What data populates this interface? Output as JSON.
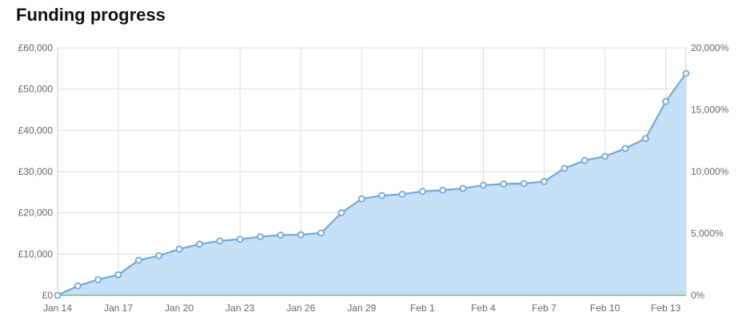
{
  "header": {
    "title": "Funding progress"
  },
  "chart_data": {
    "type": "area",
    "title": "Funding progress",
    "xlabel": "",
    "ylabel": "",
    "x": [
      "Jan 14",
      "Jan 15",
      "Jan 16",
      "Jan 17",
      "Jan 18",
      "Jan 19",
      "Jan 20",
      "Jan 21",
      "Jan 22",
      "Jan 23",
      "Jan 24",
      "Jan 25",
      "Jan 26",
      "Jan 27",
      "Jan 28",
      "Jan 29",
      "Jan 30",
      "Jan 31",
      "Feb 1",
      "Feb 2",
      "Feb 3",
      "Feb 4",
      "Feb 5",
      "Feb 6",
      "Feb 7",
      "Feb 8",
      "Feb 9",
      "Feb 10",
      "Feb 11",
      "Feb 12",
      "Feb 13",
      "Feb 14"
    ],
    "x_ticks": [
      "Jan 14",
      "Jan 17",
      "Jan 20",
      "Jan 23",
      "Jan 26",
      "Jan 29",
      "Feb 1",
      "Feb 4",
      "Feb 7",
      "Feb 10",
      "Feb 13"
    ],
    "y_ticks": [
      "£0",
      "£10,000",
      "£20,000",
      "£30,000",
      "£40,000",
      "£50,000",
      "£60,000"
    ],
    "y2_ticks": [
      "0%",
      "5,000%",
      "10,000%",
      "15,000%",
      "20,000%"
    ],
    "ylim": [
      0,
      60000
    ],
    "y2lim": [
      0,
      20000
    ],
    "grid": true,
    "legend": "none",
    "series": [
      {
        "values": [
          0,
          2300,
          3800,
          5000,
          8500,
          9600,
          11200,
          12400,
          13200,
          13600,
          14200,
          14600,
          14700,
          15100,
          20000,
          23400,
          24200,
          24500,
          25200,
          25500,
          25900,
          26700,
          27000,
          27100,
          27600,
          30800,
          32700,
          33700,
          35600,
          38000,
          47000,
          53800
        ],
        "color": "#6fa8dc",
        "fill": "#c7e0f7"
      },
      {
        "values": [
          0,
          0,
          0,
          0,
          0,
          0,
          0,
          0,
          0,
          0,
          0,
          0,
          0,
          0,
          0,
          0,
          0,
          0,
          0,
          0,
          0,
          0,
          0,
          0,
          0,
          0,
          0,
          0,
          0,
          0,
          0,
          0
        ],
        "color": "#8fcf8f"
      }
    ],
    "colors": {
      "grid": "#dddddd",
      "axis": "#cccccc",
      "marker_fill": "#ffffff"
    }
  }
}
